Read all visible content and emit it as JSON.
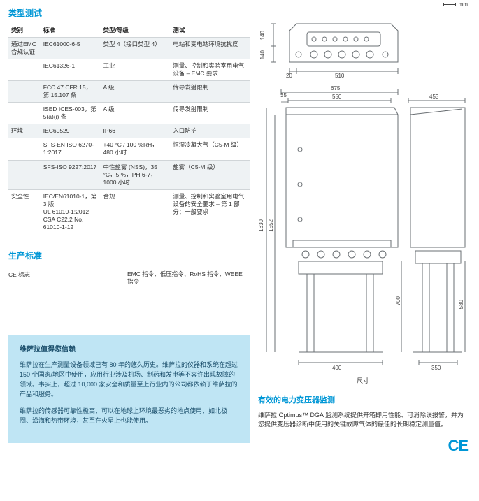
{
  "section_titles": {
    "type_test": "类型测试",
    "prod_std": "生产标准",
    "trust_title": "维萨拉值得您信赖",
    "dim_caption": "尺寸",
    "right_heading": "有效的电力变压器监测",
    "mm_label": "mm"
  },
  "spec_table": {
    "headers": {
      "c1": "类别",
      "c2": "标准",
      "c3": "类型/等级",
      "c4": "测试"
    },
    "rows": [
      {
        "alt": 1,
        "c1": "通过EMC合规认证",
        "c2": "IEC61000-6-5",
        "c3": "类型 4（接口类型 4）",
        "c4": "电站和变电站环境抗扰度"
      },
      {
        "alt": 0,
        "c1": "",
        "c2": "IEC61326-1",
        "c3": "工业",
        "c4": "测量、控制和实验室用电气设备 – EMC 要求"
      },
      {
        "alt": 1,
        "c1": "",
        "c2": "FCC 47 CFR 15，第 15.107 条",
        "c3": "A 级",
        "c4": "传导发射限制"
      },
      {
        "alt": 0,
        "c1": "",
        "c2": "ISED ICES-003，第 5(a)(i) 条",
        "c3": "A 级",
        "c4": "传导发射限制"
      },
      {
        "alt": 1,
        "c1": "环境",
        "c2": "IEC60529",
        "c3": "IP66",
        "c4": "入口防护"
      },
      {
        "alt": 0,
        "c1": "",
        "c2": "SFS-EN ISO 6270-1:2017",
        "c3": "+40 °C / 100 %RH，480 小时",
        "c4": "恒湿冷凝大气（C5-M 级）"
      },
      {
        "alt": 1,
        "c1": "",
        "c2": "SFS-ISO 9227:2017",
        "c3": "中性盐雾 (NSS)，35 °C，5 %，PH 6-7，1000 小时",
        "c4": "盐雾（C5-M 级）"
      },
      {
        "alt": 0,
        "c1": "安全性",
        "c2": "IEC/EN61010-1，第 3 版\nUL 61010-1:2012\nCSA C22.2 No. 61010-1-12",
        "c3": "合规",
        "c4": "测量、控制和实验室用电气设备的安全要求 – 第 1 部分：一般要求"
      }
    ]
  },
  "prod_std": {
    "c1": "CE 标志",
    "c2": "EMC 指令、低压指令、RoHS 指令、WEEE 指令"
  },
  "trust": {
    "p1": "维萨拉在生产测量设备领域已有 80 年的悠久历史。维萨拉的仪器和系统在超过 150 个国家/地区中使用，应用行业涉及机场、制药和发电等不容许出现故障的领域。事实上，超过 10,000 家安全和质量至上行业内的公司都依赖于维萨拉的产品和服务。",
    "p2": "维萨拉的传感器可靠性极高，可以在地球上环境最恶劣的地点使用，如北极圈、沿海和热带环境，甚至在火星上也能使用。"
  },
  "right_body": "维萨拉 Optimus™ DGA 监测系统提供开箱即用性能、可消除误报警，并为您提供变压器诊断中使用的关键故障气体的最佳的长期稳定测量值。",
  "ce_text": "CE",
  "dimensions": {
    "top": {
      "h1": "140",
      "h2": "140",
      "w1": "20",
      "w2": "510"
    },
    "front": {
      "w_top": "675",
      "w": "550",
      "h_total": "1630",
      "h_enclosure": "1552",
      "h_leg1": "700",
      "h_leg2": "580",
      "base": "400",
      "side_gap": "35"
    },
    "side": {
      "w": "453",
      "base": "350"
    }
  },
  "colors": {
    "accent": "#0097d6",
    "trust_bg": "#bfe5f4",
    "alt_row": "#eef2f4",
    "border": "#d0d5d8",
    "line": "#6a6f73",
    "text": "#333333"
  }
}
